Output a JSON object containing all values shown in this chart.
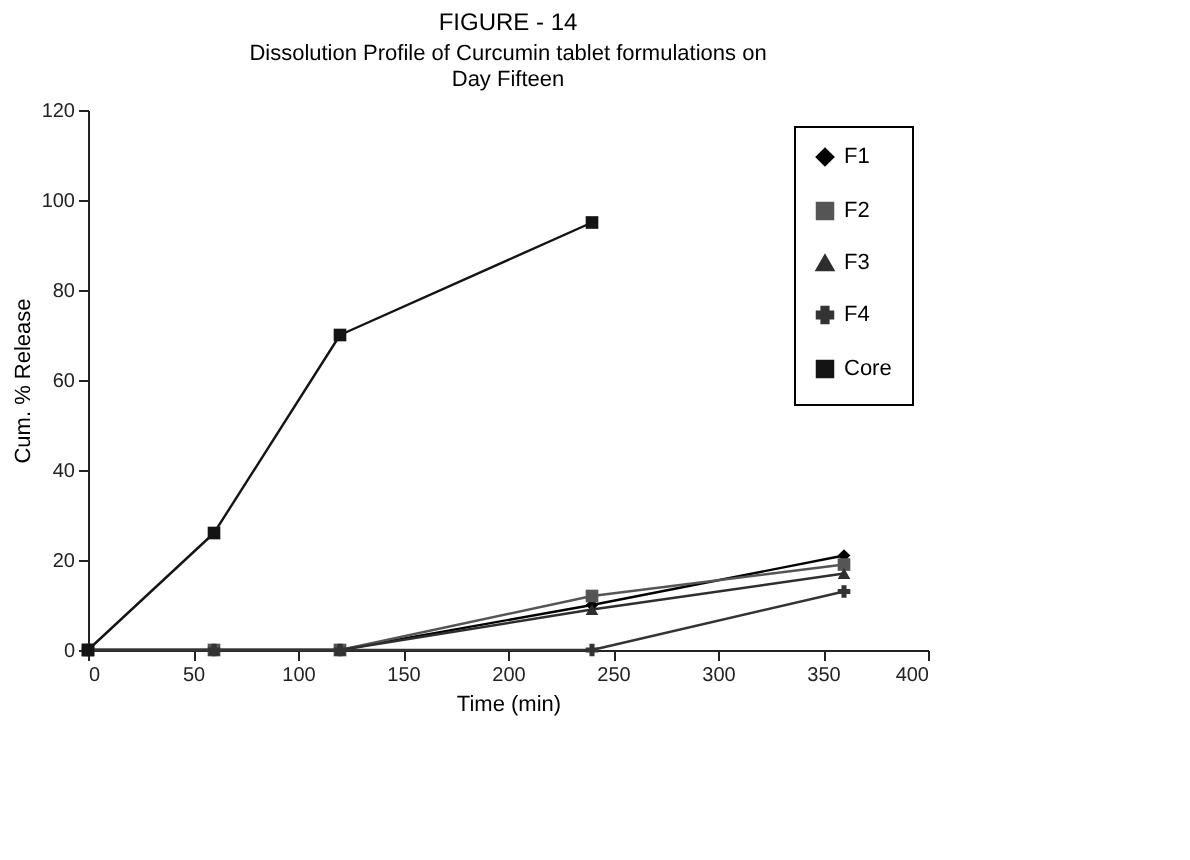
{
  "chart_data": {
    "type": "line",
    "title": "FIGURE - 14",
    "subtitle": [
      "Dissolution Profile of Curcumin tablet formulations on",
      "Day Fifteen"
    ],
    "xlabel": "Time (min)",
    "ylabel": "Cum. % Release",
    "x": [
      0,
      60,
      120,
      240,
      360
    ],
    "series": [
      {
        "name": "F1",
        "color": "#000000",
        "marker": "diamond",
        "values": [
          0,
          0,
          0,
          10,
          21
        ]
      },
      {
        "name": "F2",
        "color": "#555555",
        "marker": "square",
        "values": [
          0,
          0,
          0,
          12,
          19
        ]
      },
      {
        "name": "F3",
        "color": "#2e2e2e",
        "marker": "triangle",
        "values": [
          0,
          0,
          0,
          9,
          17
        ]
      },
      {
        "name": "F4",
        "color": "#333333",
        "marker": "cross",
        "values": [
          0,
          0,
          0,
          0,
          13
        ]
      },
      {
        "name": "Core",
        "color": "#141414",
        "marker": "square",
        "values": [
          0,
          26,
          70,
          95,
          null
        ]
      }
    ],
    "xlim": [
      0,
      400
    ],
    "xticks": [
      0,
      50,
      100,
      150,
      200,
      250,
      300,
      350,
      400
    ],
    "ylim": [
      0,
      120
    ],
    "yticks": [
      0,
      20,
      40,
      60,
      80,
      100,
      120
    ],
    "grid": false,
    "legend": "top right",
    "line_style": "solid"
  }
}
